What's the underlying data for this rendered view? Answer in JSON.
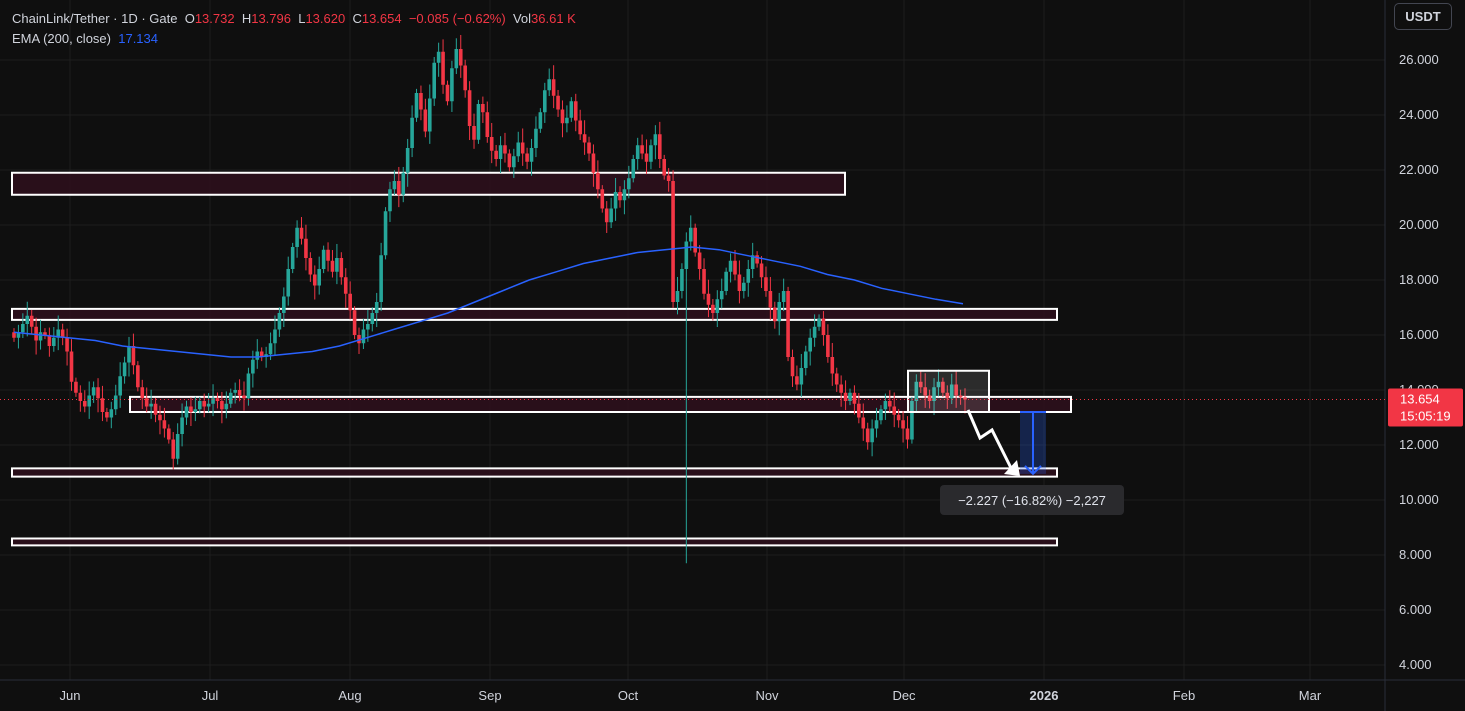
{
  "header": {
    "symbol": "ChainLink/Tether · 1D · Gate",
    "open_label": "O",
    "open": "13.732",
    "high_label": "H",
    "high": "13.796",
    "low_label": "L",
    "low": "13.620",
    "close_label": "C",
    "close": "13.654",
    "change": "−0.085 (−0.62%)",
    "vol_label": "Vol",
    "vol": "36.61 K",
    "ema_label": "EMA (200, close)",
    "ema_value": "17.134"
  },
  "currency": "USDT",
  "colors": {
    "up": "#26a69a",
    "down": "#f23645",
    "ema": "#2962ff",
    "zone_fill": "#2e0f1c",
    "bg": "#0f0f0f",
    "grid": "#1e1e1e",
    "price_tag": "#f23645"
  },
  "chart_data": {
    "type": "candlestick",
    "y_ticks": [
      "26.000",
      "24.000",
      "22.000",
      "20.000",
      "18.000",
      "16.000",
      "14.000",
      "12.000",
      "10.000",
      "8.000",
      "6.000",
      "4.000"
    ],
    "ylim": [
      3.4,
      27.6
    ],
    "x_ticks": [
      "Jun",
      "Jul",
      "Aug",
      "Sep",
      "Oct",
      "Nov",
      "Dec",
      "2026",
      "Feb",
      "Mar"
    ],
    "last_price": "13.654",
    "countdown": "15:05:19",
    "measure_label": "−2.227 (−16.82%) −2,227",
    "zones": [
      {
        "from": 21.1,
        "to": 21.9
      },
      {
        "from": 16.55,
        "to": 16.95
      },
      {
        "from": 13.2,
        "to": 13.75
      },
      {
        "from": 10.85,
        "to": 11.15
      },
      {
        "from": 8.35,
        "to": 8.6
      }
    ],
    "consolidation_box": {
      "from": 13.2,
      "to": 14.7
    },
    "measure": {
      "from": 13.2,
      "to": 10.95
    },
    "series_close": [
      15.9,
      16.1,
      16.4,
      16.7,
      16.3,
      15.8,
      16.1,
      16.0,
      15.6,
      15.9,
      16.2,
      15.9,
      15.4,
      14.3,
      13.9,
      13.6,
      13.4,
      13.8,
      14.1,
      13.7,
      13.2,
      13.0,
      13.3,
      13.8,
      14.5,
      15.0,
      15.6,
      14.9,
      14.1,
      13.7,
      13.4,
      13.5,
      13.1,
      12.9,
      12.6,
      12.2,
      11.5,
      12.4,
      13.0,
      13.4,
      13.2,
      13.3,
      13.6,
      13.4,
      13.5,
      13.7,
      13.6,
      13.3,
      13.5,
      13.9,
      14.0,
      13.8,
      13.7,
      14.6,
      15.1,
      15.4,
      15.2,
      15.3,
      15.7,
      16.2,
      16.8,
      17.4,
      18.4,
      19.2,
      19.9,
      19.5,
      18.8,
      18.2,
      17.8,
      18.4,
      19.1,
      18.7,
      18.3,
      18.8,
      18.1,
      17.5,
      16.9,
      16.0,
      15.7,
      16.2,
      16.4,
      16.8,
      17.2,
      18.9,
      20.5,
      21.3,
      21.6,
      21.1,
      21.9,
      22.8,
      23.9,
      24.8,
      24.2,
      23.4,
      24.6,
      25.9,
      26.3,
      25.1,
      24.5,
      25.7,
      26.4,
      25.8,
      24.9,
      23.6,
      23.1,
      24.4,
      24.1,
      23.2,
      22.7,
      22.4,
      22.9,
      22.6,
      22.1,
      22.5,
      23.0,
      22.6,
      22.3,
      22.8,
      23.5,
      24.1,
      24.9,
      25.3,
      24.7,
      24.2,
      23.7,
      23.9,
      24.5,
      23.8,
      23.3,
      23.0,
      22.6,
      21.9,
      21.3,
      20.6,
      20.1,
      20.6,
      21.2,
      20.9,
      21.3,
      21.7,
      22.4,
      22.9,
      22.6,
      22.3,
      22.9,
      23.3,
      22.4,
      21.8,
      21.6,
      17.2,
      17.6,
      18.4,
      19.4,
      19.9,
      19.0,
      18.4,
      17.5,
      17.1,
      16.8,
      17.3,
      17.6,
      18.3,
      18.7,
      18.2,
      17.6,
      17.9,
      18.4,
      18.9,
      18.6,
      18.1,
      17.6,
      17.0,
      16.5,
      17.2,
      17.6,
      15.2,
      14.5,
      14.2,
      14.8,
      15.4,
      15.9,
      16.3,
      16.6,
      16.0,
      15.2,
      14.6,
      14.2,
      13.9,
      13.6,
      13.9,
      13.5,
      13.0,
      12.6,
      12.1,
      12.6,
      12.9,
      13.3,
      13.6,
      13.4,
      13.1,
      12.9,
      12.6,
      12.2,
      13.6,
      14.3,
      14.1,
      13.8,
      13.6,
      14.1,
      14.3,
      13.9,
      13.7,
      14.2,
      13.8,
      13.732,
      13.654
    ],
    "ema_200": [
      16.1,
      16.0,
      15.9,
      15.8,
      15.6,
      15.5,
      15.4,
      15.3,
      15.2,
      15.2,
      15.3,
      15.4,
      15.6,
      15.9,
      16.2,
      16.5,
      16.8,
      17.2,
      17.6,
      18.0,
      18.3,
      18.6,
      18.8,
      19.0,
      19.1,
      19.2,
      19.1,
      18.9,
      18.7,
      18.5,
      18.2,
      18.0,
      17.7,
      17.5,
      17.3,
      17.134
    ]
  }
}
